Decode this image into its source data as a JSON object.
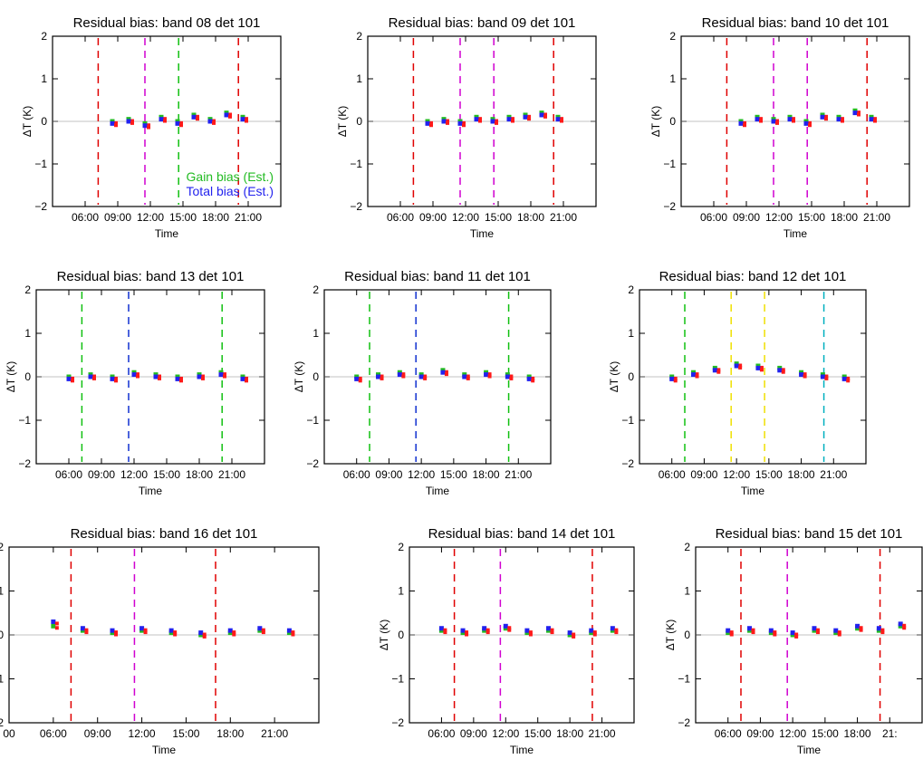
{
  "figure": {
    "background": "#ffffff",
    "frame_color": "#000000",
    "colors": {
      "tick_red": "#e00000",
      "tick_magenta": "#d000d0",
      "tick_green": "#10c010",
      "tick_yellow": "#f0e000",
      "tick_blue": "#1030d0",
      "tick_cyan": "#00b0c0",
      "residual": "#ff1a1a",
      "gain_bias": "#22bb22",
      "total_bias": "#2222ee"
    }
  },
  "chart_data": [
    {
      "type": "scatter",
      "title": "Residual bias: band 08 det 101",
      "xlabel": "Time",
      "ylabel": "ΔT (K)",
      "xlim": [
        3,
        24
      ],
      "ylim": [
        -2,
        2
      ],
      "x_tick_labels": [
        "06:00",
        "09:00",
        "12:00",
        "15:00",
        "18:00",
        "21:00"
      ],
      "y_tick_labels": [
        "−2",
        "−1",
        "0",
        "1",
        "2"
      ],
      "legend": [
        "Gain bias (Est.)",
        "Total bias (Est.)"
      ],
      "legend_position": "lower-right",
      "event_lines": [
        {
          "x": 7.2,
          "color": "red"
        },
        {
          "x": 11.5,
          "color": "magenta"
        },
        {
          "x": 14.6,
          "color": "green"
        },
        {
          "x": 20.1,
          "color": "red"
        }
      ],
      "series": [
        {
          "name": "Gain bias (Est.)",
          "x": [
            8.5,
            10.0,
            11.5,
            13.0,
            14.5,
            16.0,
            17.5,
            19.0,
            20.5
          ],
          "y": [
            0.0,
            0.05,
            -0.05,
            0.1,
            0.0,
            0.15,
            0.05,
            0.2,
            0.1
          ]
        },
        {
          "name": "Total bias (Est.)",
          "x": [
            8.5,
            10.0,
            11.5,
            13.0,
            14.5,
            16.0,
            17.5,
            19.0,
            20.5
          ],
          "y": [
            -0.05,
            0.0,
            -0.1,
            0.05,
            -0.05,
            0.1,
            0.0,
            0.15,
            0.05
          ]
        }
      ],
      "grid": false
    },
    {
      "type": "scatter",
      "title": "Residual bias: band 09 det 101",
      "xlabel": "Time",
      "ylabel": "ΔT (K)",
      "xlim": [
        3,
        24
      ],
      "ylim": [
        -2,
        2
      ],
      "x_tick_labels": [
        "06:00",
        "09:00",
        "12:00",
        "15:00",
        "18:00",
        "21:00"
      ],
      "y_tick_labels": [
        "−2",
        "−1",
        "0",
        "1",
        "2"
      ],
      "event_lines": [
        {
          "x": 7.2,
          "color": "red"
        },
        {
          "x": 11.5,
          "color": "magenta"
        },
        {
          "x": 14.6,
          "color": "magenta"
        },
        {
          "x": 20.1,
          "color": "red"
        }
      ],
      "series": [
        {
          "name": "Gain bias (Est.)",
          "x": [
            8.5,
            10.0,
            11.5,
            13.0,
            14.5,
            16.0,
            17.5,
            19.0,
            20.5
          ],
          "y": [
            0.0,
            0.05,
            0.0,
            0.1,
            0.05,
            0.1,
            0.15,
            0.2,
            0.1
          ]
        },
        {
          "name": "Total bias (Est.)",
          "x": [
            8.5,
            10.0,
            11.5,
            13.0,
            14.5,
            16.0,
            17.5,
            19.0,
            20.5
          ],
          "y": [
            -0.05,
            0.0,
            -0.05,
            0.05,
            0.0,
            0.05,
            0.1,
            0.15,
            0.05
          ]
        }
      ],
      "grid": false
    },
    {
      "type": "scatter",
      "title": "Residual bias: band 10 det 101",
      "xlabel": "Time",
      "ylabel": "ΔT (K)",
      "xlim": [
        3,
        24
      ],
      "ylim": [
        -2,
        2
      ],
      "x_tick_labels": [
        "06:00",
        "09:00",
        "12:00",
        "15:00",
        "18:00",
        "21:00"
      ],
      "y_tick_labels": [
        "−2",
        "−1",
        "0",
        "1",
        "2"
      ],
      "event_lines": [
        {
          "x": 7.2,
          "color": "red"
        },
        {
          "x": 11.5,
          "color": "magenta"
        },
        {
          "x": 14.6,
          "color": "magenta"
        },
        {
          "x": 20.1,
          "color": "red"
        }
      ],
      "series": [
        {
          "name": "Gain bias (Est.)",
          "x": [
            8.5,
            10.0,
            11.5,
            13.0,
            14.5,
            16.0,
            17.5,
            19.0,
            20.5
          ],
          "y": [
            0.0,
            0.1,
            0.05,
            0.1,
            0.0,
            0.15,
            0.1,
            0.25,
            0.1
          ]
        },
        {
          "name": "Total bias (Est.)",
          "x": [
            8.5,
            10.0,
            11.5,
            13.0,
            14.5,
            16.0,
            17.5,
            19.0,
            20.5
          ],
          "y": [
            -0.05,
            0.05,
            0.0,
            0.05,
            -0.05,
            0.1,
            0.05,
            0.2,
            0.05
          ]
        }
      ],
      "grid": false
    },
    {
      "type": "scatter",
      "title": "Residual bias: band 13 det 101",
      "xlabel": "Time",
      "ylabel": "ΔT (K)",
      "xlim": [
        3,
        24
      ],
      "ylim": [
        -2,
        2
      ],
      "x_tick_labels": [
        "06:00",
        "09:00",
        "12:00",
        "15:00",
        "18:00",
        "21:00"
      ],
      "y_tick_labels": [
        "−2",
        "−1",
        "0",
        "1",
        "2"
      ],
      "event_lines": [
        {
          "x": 7.2,
          "color": "green"
        },
        {
          "x": 11.5,
          "color": "blue"
        },
        {
          "x": 20.1,
          "color": "green"
        }
      ],
      "series": [
        {
          "name": "Gain bias (Est.)",
          "x": [
            6.0,
            8.0,
            10.0,
            12.0,
            14.0,
            16.0,
            18.0,
            20.0,
            22.0
          ],
          "y": [
            0.0,
            0.05,
            0.0,
            0.1,
            0.05,
            0.0,
            0.05,
            0.1,
            0.0
          ]
        },
        {
          "name": "Total bias (Est.)",
          "x": [
            6.0,
            8.0,
            10.0,
            12.0,
            14.0,
            16.0,
            18.0,
            20.0,
            22.0
          ],
          "y": [
            -0.05,
            0.0,
            -0.05,
            0.05,
            0.0,
            -0.05,
            0.0,
            0.05,
            -0.05
          ]
        }
      ],
      "grid": false
    },
    {
      "type": "scatter",
      "title": "Residual bias: band 11 det 101",
      "xlabel": "Time",
      "ylabel": "ΔT (K)",
      "xlim": [
        3,
        24
      ],
      "ylim": [
        -2,
        2
      ],
      "x_tick_labels": [
        "06:00",
        "09:00",
        "12:00",
        "15:00",
        "18:00",
        "21:00"
      ],
      "y_tick_labels": [
        "−2",
        "−1",
        "0",
        "1",
        "2"
      ],
      "event_lines": [
        {
          "x": 7.2,
          "color": "green"
        },
        {
          "x": 11.5,
          "color": "blue"
        },
        {
          "x": 20.1,
          "color": "green"
        }
      ],
      "series": [
        {
          "name": "Gain bias (Est.)",
          "x": [
            6.0,
            8.0,
            10.0,
            12.0,
            14.0,
            16.0,
            18.0,
            20.0,
            22.0
          ],
          "y": [
            0.0,
            0.05,
            0.1,
            0.05,
            0.15,
            0.05,
            0.1,
            0.05,
            0.0
          ]
        },
        {
          "name": "Total bias (Est.)",
          "x": [
            6.0,
            8.0,
            10.0,
            12.0,
            14.0,
            16.0,
            18.0,
            20.0,
            22.0
          ],
          "y": [
            -0.05,
            0.0,
            0.05,
            0.0,
            0.1,
            0.0,
            0.05,
            0.0,
            -0.05
          ]
        }
      ],
      "grid": false
    },
    {
      "type": "scatter",
      "title": "Residual bias: band 12 det 101",
      "xlabel": "Time",
      "ylabel": "ΔT (K)",
      "xlim": [
        3,
        24
      ],
      "ylim": [
        -2,
        2
      ],
      "x_tick_labels": [
        "06:00",
        "09:00",
        "12:00",
        "15:00",
        "18:00",
        "21:00"
      ],
      "y_tick_labels": [
        "−2",
        "−1",
        "0",
        "1",
        "2"
      ],
      "event_lines": [
        {
          "x": 7.2,
          "color": "green"
        },
        {
          "x": 11.5,
          "color": "yellow"
        },
        {
          "x": 14.6,
          "color": "yellow"
        },
        {
          "x": 20.1,
          "color": "cyan"
        }
      ],
      "series": [
        {
          "name": "Gain bias (Est.)",
          "x": [
            6.0,
            8.0,
            10.0,
            12.0,
            14.0,
            16.0,
            18.0,
            20.0,
            22.0
          ],
          "y": [
            0.0,
            0.1,
            0.2,
            0.3,
            0.25,
            0.2,
            0.1,
            0.05,
            0.0
          ]
        },
        {
          "name": "Total bias (Est.)",
          "x": [
            6.0,
            8.0,
            10.0,
            12.0,
            14.0,
            16.0,
            18.0,
            20.0,
            22.0
          ],
          "y": [
            -0.05,
            0.05,
            0.15,
            0.25,
            0.2,
            0.15,
            0.05,
            0.0,
            -0.05
          ]
        }
      ],
      "grid": false
    },
    {
      "type": "scatter",
      "title": "Residual bias: band 16 det 101",
      "xlabel": "Time",
      "ylabel": "ΔT (K)",
      "xlim": [
        3,
        24
      ],
      "ylim": [
        -2,
        2
      ],
      "x_tick_labels": [
        "00",
        "06:00",
        "09:00",
        "12:00",
        "15:00",
        "18:00",
        "21:00"
      ],
      "y_tick_labels": [
        "−2",
        "−1",
        "0",
        "1",
        "2"
      ],
      "event_lines": [
        {
          "x": 7.2,
          "color": "red"
        },
        {
          "x": 11.5,
          "color": "magenta"
        },
        {
          "x": 17.0,
          "color": "red"
        }
      ],
      "series": [
        {
          "name": "Gain bias (Est.)",
          "x": [
            6.0,
            8.0,
            10.0,
            12.0,
            14.0,
            16.0,
            18.0,
            20.0,
            22.0
          ],
          "y": [
            0.2,
            0.1,
            0.05,
            0.1,
            0.05,
            0.0,
            0.05,
            0.1,
            0.05
          ]
        },
        {
          "name": "Total bias (Est.)",
          "x": [
            6.0,
            8.0,
            10.0,
            12.0,
            14.0,
            16.0,
            18.0,
            20.0,
            22.0
          ],
          "y": [
            0.3,
            0.15,
            0.1,
            0.15,
            0.1,
            0.05,
            0.1,
            0.15,
            0.1
          ]
        }
      ],
      "grid": false
    },
    {
      "type": "scatter",
      "title": "Residual bias: band 14 det 101",
      "xlabel": "Time",
      "ylabel": "ΔT (K)",
      "xlim": [
        3,
        24
      ],
      "ylim": [
        -2,
        2
      ],
      "x_tick_labels": [
        "06:00",
        "09:00",
        "12:00",
        "15:00",
        "18:00",
        "21:00"
      ],
      "y_tick_labels": [
        "−2",
        "−1",
        "0",
        "1",
        "2"
      ],
      "event_lines": [
        {
          "x": 7.2,
          "color": "red"
        },
        {
          "x": 11.5,
          "color": "magenta"
        },
        {
          "x": 20.1,
          "color": "red"
        }
      ],
      "series": [
        {
          "name": "Gain bias (Est.)",
          "x": [
            6.0,
            8.0,
            10.0,
            12.0,
            14.0,
            16.0,
            18.0,
            20.0,
            22.0
          ],
          "y": [
            0.1,
            0.05,
            0.1,
            0.15,
            0.05,
            0.1,
            0.0,
            0.05,
            0.1
          ]
        },
        {
          "name": "Total bias (Est.)",
          "x": [
            6.0,
            8.0,
            10.0,
            12.0,
            14.0,
            16.0,
            18.0,
            20.0,
            22.0
          ],
          "y": [
            0.15,
            0.1,
            0.15,
            0.2,
            0.1,
            0.15,
            0.05,
            0.1,
            0.15
          ]
        }
      ],
      "grid": false
    },
    {
      "type": "scatter",
      "title": "Residual bias: band 15 det 101",
      "xlabel": "Time",
      "ylabel": "ΔT (K)",
      "xlim": [
        3,
        24
      ],
      "ylim": [
        -2,
        2
      ],
      "x_tick_labels": [
        "06:00",
        "09:00",
        "12:00",
        "15:00",
        "18:00",
        "21:"
      ],
      "y_tick_labels": [
        "−2",
        "−1",
        "0",
        "1",
        "2"
      ],
      "event_lines": [
        {
          "x": 7.2,
          "color": "red"
        },
        {
          "x": 11.5,
          "color": "magenta"
        },
        {
          "x": 20.1,
          "color": "red"
        }
      ],
      "series": [
        {
          "name": "Gain bias (Est.)",
          "x": [
            6.0,
            8.0,
            10.0,
            12.0,
            14.0,
            16.0,
            18.0,
            20.0,
            22.0
          ],
          "y": [
            0.05,
            0.1,
            0.05,
            0.0,
            0.1,
            0.05,
            0.15,
            0.1,
            0.2
          ]
        },
        {
          "name": "Total bias (Est.)",
          "x": [
            6.0,
            8.0,
            10.0,
            12.0,
            14.0,
            16.0,
            18.0,
            20.0,
            22.0
          ],
          "y": [
            0.1,
            0.15,
            0.1,
            0.05,
            0.15,
            0.1,
            0.2,
            0.15,
            0.25
          ]
        }
      ],
      "grid": false
    }
  ]
}
